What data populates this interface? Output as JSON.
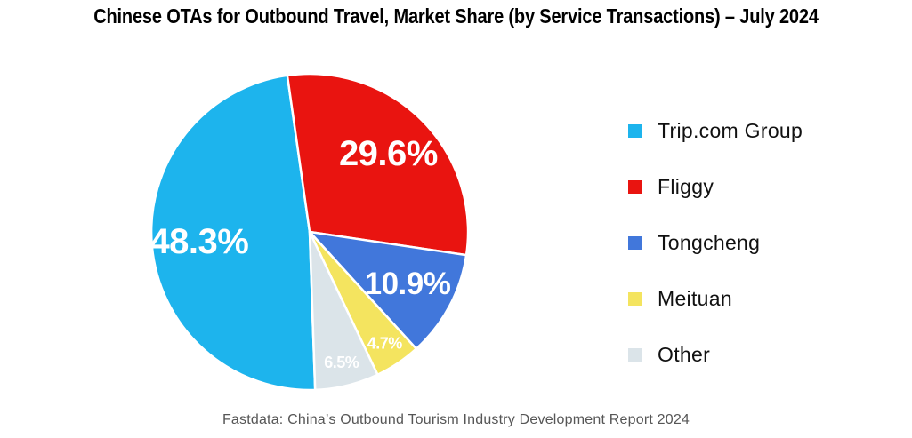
{
  "chart_data": {
    "type": "pie",
    "title": "Chinese OTAs for Outbound Travel, Market Share (by Service Transactions) – July 2024",
    "series": [
      {
        "label": "Trip.com Group",
        "value": 48.3,
        "color": "#1DB4ED"
      },
      {
        "label": "Fliggy",
        "value": 29.6,
        "color": "#E91410"
      },
      {
        "label": "Tongcheng",
        "value": 10.9,
        "color": "#4177DB"
      },
      {
        "label": "Meituan",
        "value": 4.7,
        "color": "#F4E45F"
      },
      {
        "label": "Other",
        "value": 6.5,
        "color": "#DBE4E9"
      }
    ],
    "start_angle_deg": 178,
    "direction": "clockwise",
    "slice_label_format": "{value}%",
    "slice_label_color": "#FFFFFF",
    "legend_position": "right",
    "grid": false
  },
  "footer": {
    "source": "Fastdata: China’s Outbound Tourism Industry Development Report 2024"
  }
}
